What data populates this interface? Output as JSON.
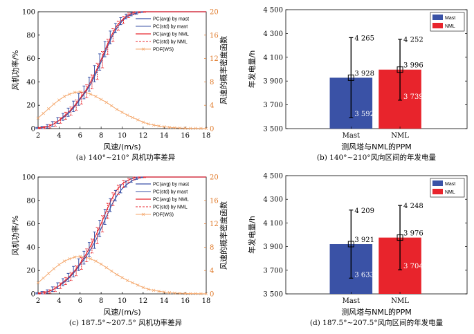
{
  "colors": {
    "mast": "#3a52a6",
    "nml": "#e8242c",
    "pdf": "#f4a66a",
    "right_axis": "#e07a2a",
    "errorbar": "#000000"
  },
  "chart_data": [
    {
      "id": "a",
      "type": "line",
      "caption": "(a) 140°~210° 风机功率差异",
      "xlabel": "风速/(m/s)",
      "ylabel_left": "风机功率/%",
      "ylabel_right": "风速的概率密度函数",
      "xlim": [
        2,
        18
      ],
      "ylim_left": [
        0,
        100
      ],
      "ylim_right": [
        0,
        20
      ],
      "xticks": [
        "2",
        "4",
        "6",
        "8",
        "10",
        "12",
        "14",
        "16",
        "18"
      ],
      "yticks_left": [
        "0",
        "20",
        "40",
        "60",
        "80",
        "100"
      ],
      "yticks_right": [
        "0",
        "4",
        "8",
        "12",
        "16",
        "20"
      ],
      "legend": [
        "PC(avg) by mast",
        "PC(std) by mast",
        "PC(avg) by NML",
        "PC(std) by NML",
        "PDF(WS)"
      ],
      "x": [
        2.0,
        2.5,
        3.0,
        3.5,
        4.0,
        4.5,
        5.0,
        5.5,
        6.0,
        6.5,
        7.0,
        7.5,
        8.0,
        8.5,
        9.0,
        9.5,
        10.0,
        10.5,
        11.0,
        11.5,
        12.0,
        12.5,
        13.0,
        13.5,
        14.0,
        14.5,
        15.0,
        15.5,
        16.0,
        16.5,
        17.0,
        17.5,
        18.0
      ],
      "series": [
        {
          "name": "PC(avg) by mast",
          "values": [
            0.5,
            1,
            2,
            4,
            7,
            10,
            14,
            19,
            25,
            31,
            38,
            47,
            57,
            68,
            78,
            86,
            92,
            96,
            98,
            99,
            100,
            100,
            100,
            100,
            100,
            100,
            100,
            100,
            100,
            100,
            100,
            100,
            100
          ],
          "std": [
            0.5,
            1,
            1.5,
            2,
            2.5,
            3,
            3.5,
            4.5,
            5,
            5.5,
            6,
            7,
            7,
            6.5,
            5.5,
            4,
            3,
            2,
            1.5,
            1,
            0.5,
            0,
            0,
            0,
            0,
            0,
            0,
            0,
            0,
            0,
            0,
            0,
            0
          ]
        },
        {
          "name": "PC(avg) by NML",
          "values": [
            0.5,
            1,
            2,
            4,
            7,
            11,
            15,
            20,
            26,
            32,
            40,
            49,
            59,
            70,
            80,
            88,
            93,
            97,
            99,
            100,
            100,
            100,
            100,
            100,
            100,
            100,
            100,
            100,
            100,
            100,
            100,
            100,
            100
          ],
          "std": [
            0.5,
            1,
            1.5,
            2,
            2.5,
            3,
            3.5,
            4.5,
            5,
            5.5,
            6,
            7,
            7,
            6.5,
            5.5,
            4,
            3,
            2,
            1.5,
            1,
            0.5,
            0,
            0,
            0,
            0,
            0,
            0,
            0,
            0,
            0,
            0,
            0,
            0
          ]
        },
        {
          "name": "PDF(WS)",
          "axis": "right",
          "values": [
            1.8,
            2.6,
            3.4,
            4.2,
            4.9,
            5.5,
            5.9,
            6.2,
            6.3,
            6.2,
            5.9,
            5.5,
            5.0,
            4.5,
            3.9,
            3.3,
            2.8,
            2.3,
            1.9,
            1.5,
            1.1,
            0.8,
            0.6,
            0.45,
            0.32,
            0.22,
            0.15,
            0.1,
            0.07,
            0.05,
            0.04,
            0.03,
            0.02
          ]
        }
      ]
    },
    {
      "id": "b",
      "type": "bar",
      "caption": "(b) 140°~210°风向区间的年发电量",
      "xlabel": "测风塔与NML的PPM",
      "ylabel": "年发电量/h",
      "ylim": [
        3500,
        4500
      ],
      "yticks": [
        "3 500",
        "3 700",
        "3 900",
        "4 100",
        "4 300",
        "4 500"
      ],
      "categories": [
        "Mast",
        "NML"
      ],
      "values": [
        3928,
        3996
      ],
      "upper": [
        4265,
        4252
      ],
      "lower": [
        3592,
        3739
      ],
      "value_labels": [
        "3 928",
        "3 996"
      ],
      "upper_labels": [
        "4 265",
        "4 252"
      ],
      "lower_labels": [
        "3 592",
        "3 739"
      ],
      "legend": [
        "Mast",
        "NML"
      ]
    },
    {
      "id": "c",
      "type": "line",
      "caption": "(c) 187.5°~207.5° 风机功率差异",
      "xlabel": "风速/(m/s)",
      "ylabel_left": "风机功率/%",
      "ylabel_right": "风速的概率密度函数",
      "xlim": [
        2,
        18
      ],
      "ylim_left": [
        0,
        100
      ],
      "ylim_right": [
        0,
        20
      ],
      "xticks": [
        "2",
        "4",
        "6",
        "8",
        "10",
        "12",
        "14",
        "16",
        "18"
      ],
      "yticks_left": [
        "0",
        "20",
        "40",
        "60",
        "80",
        "100"
      ],
      "yticks_right": [
        "0",
        "4",
        "8",
        "12",
        "16",
        "20"
      ],
      "legend": [
        "PC(avg) by mast",
        "PC(std) by mast",
        "PC(avg) by NML",
        "PC(std) by NML",
        "PDF(WS)"
      ],
      "x": [
        2.0,
        2.5,
        3.0,
        3.5,
        4.0,
        4.5,
        5.0,
        5.5,
        6.0,
        6.5,
        7.0,
        7.5,
        8.0,
        8.5,
        9.0,
        9.5,
        10.0,
        10.5,
        11.0,
        11.5,
        12.0,
        12.5,
        13.0,
        13.5,
        14.0,
        14.5,
        15.0,
        15.5,
        16.0,
        16.5,
        17.0,
        17.5,
        18.0
      ],
      "series": [
        {
          "name": "PC(avg) by mast",
          "values": [
            0.5,
            1,
            2,
            4,
            7,
            10,
            14,
            19,
            25,
            31,
            38,
            46,
            56,
            66,
            76,
            84,
            90,
            94,
            97,
            99,
            100,
            100,
            100,
            100,
            100,
            100,
            100,
            100,
            100,
            100,
            100,
            100,
            100
          ],
          "std": [
            0.5,
            1,
            1.5,
            2,
            2.5,
            3,
            3.5,
            4.5,
            5,
            5.5,
            6,
            7,
            7,
            6.5,
            5.5,
            4.5,
            3.5,
            2.5,
            1.5,
            1,
            0.5,
            0,
            0,
            0,
            0,
            0,
            0,
            0,
            0,
            0,
            0,
            0,
            0
          ]
        },
        {
          "name": "PC(avg) by NML",
          "values": [
            0.5,
            1,
            2,
            4,
            7,
            11,
            15,
            20,
            26,
            33,
            41,
            50,
            60,
            71,
            81,
            89,
            94,
            97,
            99,
            100,
            100,
            100,
            100,
            100,
            100,
            100,
            100,
            100,
            100,
            100,
            100,
            100,
            100
          ],
          "std": [
            0.5,
            1,
            1.5,
            2,
            2.5,
            3,
            3.5,
            4.5,
            5,
            5.5,
            6,
            7,
            7,
            6.5,
            5.5,
            4,
            3,
            2,
            1.5,
            1,
            0.5,
            0,
            0,
            0,
            0,
            0,
            0,
            0,
            0,
            0,
            0,
            0,
            0
          ]
        },
        {
          "name": "PDF(WS)",
          "axis": "right",
          "values": [
            1.9,
            2.7,
            3.5,
            4.3,
            5.0,
            5.6,
            6.0,
            6.3,
            6.4,
            6.3,
            6.0,
            5.6,
            5.1,
            4.5,
            3.9,
            3.3,
            2.8,
            2.3,
            1.9,
            1.5,
            1.1,
            0.8,
            0.6,
            0.45,
            0.32,
            0.22,
            0.15,
            0.1,
            0.07,
            0.05,
            0.04,
            0.03,
            0.02
          ]
        }
      ]
    },
    {
      "id": "d",
      "type": "bar",
      "caption": "(d) 187.5°~207.5°风向区间的年发电量",
      "xlabel": "测风塔与NML的PPM",
      "ylabel": "年发电量/h",
      "ylim": [
        3500,
        4500
      ],
      "yticks": [
        "3 500",
        "3 700",
        "3 900",
        "4 100",
        "4 300",
        "4 500"
      ],
      "categories": [
        "Mast",
        "NML"
      ],
      "values": [
        3921,
        3976
      ],
      "upper": [
        4209,
        4248
      ],
      "lower": [
        3633,
        3704
      ],
      "value_labels": [
        "3 921",
        "3 976"
      ],
      "upper_labels": [
        "4 209",
        "4 248"
      ],
      "lower_labels": [
        "3 633",
        "3 704"
      ],
      "legend": [
        "Mast",
        "NML"
      ]
    }
  ]
}
